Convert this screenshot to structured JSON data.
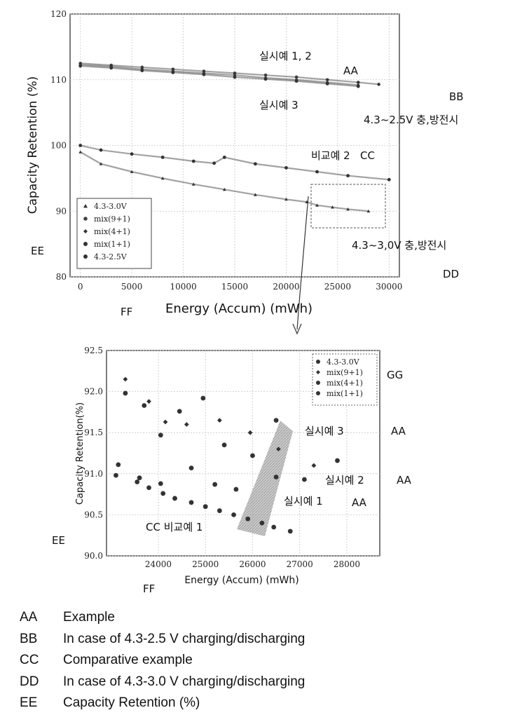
{
  "colors": {
    "ink": "#333333",
    "grid": "#c8c8c8",
    "shade": "#9a9a9a"
  },
  "labels": {
    "aa_top": "AA",
    "bb": "BB",
    "cc_top": "CC",
    "dd": "DD",
    "ee_top": "EE",
    "ff_top": "FF",
    "ee_bottom": "EE",
    "ff_bottom": "FF",
    "gg": "GG",
    "aa_b1": "AA",
    "aa_b2": "AA",
    "aa_b3": "AA"
  },
  "annotations_top": {
    "ex12": "실시예 1, 2",
    "ex3": "실시예 3",
    "v425": "4.3~2.5V 충,방전시",
    "comp2": "비교예 2",
    "v430": "4.3~3,0V 충,방전시"
  },
  "annotations_bottom": {
    "ex3": "실시예 3",
    "ex2": "실시예 2",
    "ex1": "실시예 1",
    "comp1": "CC 비교예 1"
  },
  "legend_key": [
    {
      "code": "AA",
      "text": "Example"
    },
    {
      "code": "BB",
      "text": "In case of 4.3-2.5 V charging/discharging"
    },
    {
      "code": "CC",
      "text": "Comparative example"
    },
    {
      "code": "DD",
      "text": "In case of 4.3-3.0 V charging/discharging"
    },
    {
      "code": "EE",
      "text": "Capacity Retention (%)"
    }
  ],
  "chart_data": [
    {
      "type": "scatter",
      "title": "",
      "xlabel": "Energy (Accum) (mWh)",
      "ylabel": "Capacity Retention (%)",
      "xlim": [
        -1000,
        31000
      ],
      "ylim": [
        80,
        120
      ],
      "xticks": [
        0,
        5000,
        10000,
        15000,
        20000,
        25000,
        30000
      ],
      "xticklabels": [
        "0",
        "5000",
        "10000",
        "15000",
        "20000",
        "25000",
        "30000"
      ],
      "yticks": [
        80,
        90,
        100,
        110,
        120
      ],
      "yticklabels": [
        "80",
        "90",
        "100",
        "110",
        "120"
      ],
      "legend": [
        "4.3-3.0V",
        "mix(9+1)",
        "mix(4+1)",
        "mix(1+1)",
        "4.3-2.5V"
      ],
      "legend_location": "bottom-left",
      "series": [
        {
          "name": "mix(9+1)",
          "x": [
            0,
            3000,
            6000,
            9000,
            12000,
            15000,
            18000,
            21000,
            24000,
            27000,
            29000
          ],
          "y": [
            112.5,
            112.2,
            111.9,
            111.6,
            111.3,
            111.0,
            110.7,
            110.4,
            110.0,
            109.6,
            109.3
          ]
        },
        {
          "name": "mix(4+1)",
          "x": [
            0,
            3000,
            6000,
            9000,
            12000,
            15000,
            18000,
            21000,
            24000,
            27000
          ],
          "y": [
            112.3,
            112.0,
            111.6,
            111.3,
            111.0,
            110.7,
            110.3,
            110.0,
            109.6,
            109.2
          ]
        },
        {
          "name": "mix(1+1)",
          "x": [
            0,
            3000,
            6000,
            9000,
            12000,
            15000,
            18000,
            21000,
            24000,
            27000
          ],
          "y": [
            112.1,
            111.8,
            111.4,
            111.1,
            110.8,
            110.4,
            110.1,
            109.8,
            109.4,
            109.0
          ]
        },
        {
          "name": "4.3-2.5V",
          "x": [
            0,
            2000,
            5000,
            8000,
            11000,
            13000,
            14000,
            17000,
            20000,
            23000,
            26000,
            30000
          ],
          "y": [
            100.0,
            99.3,
            98.7,
            98.2,
            97.6,
            97.3,
            98.2,
            97.2,
            96.6,
            96.0,
            95.4,
            94.8
          ]
        },
        {
          "name": "4.3-3.0V",
          "x": [
            0,
            2000,
            5000,
            8000,
            11000,
            14000,
            17000,
            20000,
            22000,
            23000,
            24500,
            26000,
            28000
          ],
          "y": [
            99.0,
            97.2,
            96.0,
            95.0,
            94.1,
            93.3,
            92.5,
            91.8,
            91.4,
            90.9,
            90.6,
            90.3,
            90.0
          ]
        }
      ]
    },
    {
      "type": "scatter",
      "title": "",
      "xlabel": "Energy (Accum) (mWh)",
      "ylabel": "Capacity Retention(%)",
      "xlim": [
        22900,
        28700
      ],
      "ylim": [
        90.0,
        92.5
      ],
      "xticks": [
        24000,
        25000,
        26000,
        27000,
        28000
      ],
      "xticklabels": [
        "24000",
        "25000",
        "26000",
        "27000",
        "28000"
      ],
      "yticks": [
        90.0,
        90.5,
        91.0,
        91.5,
        92.0,
        92.5
      ],
      "yticklabels": [
        "90.0",
        "90.5",
        "91.0",
        "91.5",
        "92.0",
        "92.5"
      ],
      "legend": [
        "4.3-3.0V",
        "mix(9+1)",
        "mix(4+1)",
        "mix(1+1)"
      ],
      "legend_location": "top-right",
      "series": [
        {
          "name": "4.3-3.0V",
          "x": [
            23100,
            23550,
            23800,
            24100,
            24350,
            24700,
            25000,
            25300,
            25600,
            25900,
            26200,
            26450,
            26800
          ],
          "y": [
            90.98,
            90.9,
            90.83,
            90.76,
            90.7,
            90.65,
            90.6,
            90.55,
            90.5,
            90.45,
            90.4,
            90.35,
            90.3
          ]
        },
        {
          "name": "mix(9+1)",
          "x": [
            23300,
            23800,
            24150,
            24600,
            25300,
            25950,
            26550,
            27300
          ],
          "y": [
            92.15,
            91.88,
            91.63,
            91.6,
            91.65,
            91.5,
            91.3,
            91.1
          ]
        },
        {
          "name": "mix(4+1)",
          "x": [
            23300,
            23700,
            24050,
            24450,
            24950,
            25400,
            26000,
            26500,
            27800
          ],
          "y": [
            91.98,
            91.83,
            91.47,
            91.76,
            91.92,
            91.35,
            91.22,
            91.65,
            91.16
          ]
        },
        {
          "name": "mix(1+1)",
          "x": [
            23150,
            23600,
            24050,
            24700,
            25200,
            25650,
            26500,
            27100
          ],
          "y": [
            91.11,
            90.95,
            90.88,
            91.07,
            90.87,
            90.81,
            90.96,
            90.93
          ]
        }
      ]
    }
  ]
}
